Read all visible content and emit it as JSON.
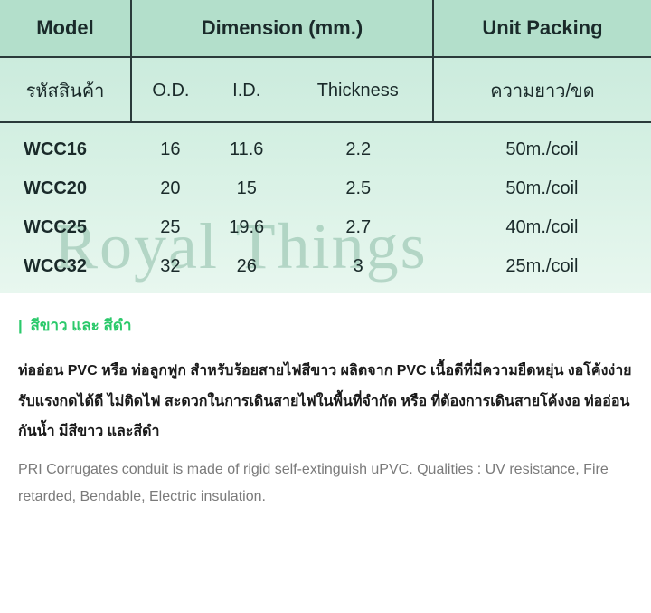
{
  "table": {
    "headers": {
      "model": "Model",
      "dimension": "Dimension (mm.)",
      "unit_packing": "Unit Packing",
      "sub_model": "รหัสสินค้า",
      "sub_od": "O.D.",
      "sub_id": "I.D.",
      "sub_thickness": "Thickness",
      "sub_unit": "ความยาว/ขด"
    },
    "rows": [
      {
        "model": "WCC16",
        "od": "16",
        "id": "11.6",
        "thickness": "2.2",
        "unit": "50m./coil"
      },
      {
        "model": "WCC20",
        "od": "20",
        "id": "15",
        "thickness": "2.5",
        "unit": "50m./coil"
      },
      {
        "model": "WCC25",
        "od": "25",
        "id": "19.6",
        "thickness": "2.7",
        "unit": "40m./coil"
      },
      {
        "model": "WCC32",
        "od": "32",
        "id": "26",
        "thickness": "3",
        "unit": "25m./coil"
      }
    ],
    "colors": {
      "header_bg": "#b3dfcb",
      "body_gradient_top": "#c5e8d9",
      "body_gradient_bottom": "#e8f7ef",
      "border": "#2a3a3a",
      "text": "#1a2a2a"
    },
    "font": {
      "header_size_pt": 22,
      "subheader_size_pt": 20,
      "body_size_pt": 20
    }
  },
  "watermark": {
    "text": "Royal Things",
    "color": "rgba(90,155,125,0.35)",
    "font_size_pt": 72
  },
  "content": {
    "color_line": "สีขาว และ สีดำ",
    "accent_color": "#2bc96b",
    "desc_th": "ท่ออ่อน PVC หรือ ท่อลูกฟูก สำหรับร้อยสายไฟสีขาว  ผลิตจาก PVC เนื้อดีที่มีความยืดหยุ่น งอโค้งง่าย รับแรงกดได้ดี ไม่ติดไฟ สะดวกในการเดินสายไฟในพื้นที่จำกัด หรือ ที่ต้องการเดินสายโค้งงอ ท่ออ่อนกันน้ำ มีสีขาว และสีดำ",
    "desc_en": "PRI Corrugates conduit is made of rigid self-extinguish uPVC. Qualities : UV resistance, Fire retarded, Bendable, Electric insulation.",
    "font": {
      "heading_size_pt": 17,
      "body_size_pt": 16
    }
  }
}
